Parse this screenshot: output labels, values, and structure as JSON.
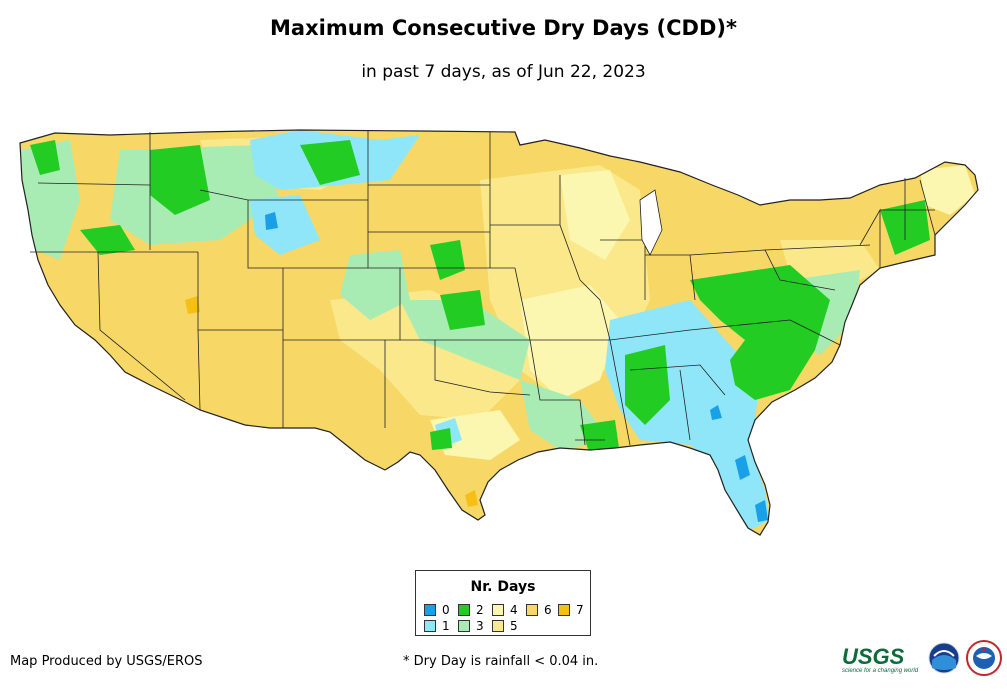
{
  "header": {
    "title": "Maximum Consecutive Dry Days (CDD)*",
    "subtitle": "in past 7 days, as of Jun 22, 2023"
  },
  "legend": {
    "title": "Nr. Days",
    "items": [
      {
        "label": "0",
        "color": "#1aa0e6"
      },
      {
        "label": "1",
        "color": "#8fe6f8"
      },
      {
        "label": "2",
        "color": "#22cc22"
      },
      {
        "label": "3",
        "color": "#a8ecb4"
      },
      {
        "label": "4",
        "color": "#fbf6b0"
      },
      {
        "label": "5",
        "color": "#fae88a"
      },
      {
        "label": "6",
        "color": "#f7d765"
      },
      {
        "label": "7",
        "color": "#f5bf16"
      }
    ]
  },
  "footer": {
    "credit": "Map Produced by USGS/EROS",
    "note": "* Dry Day is rainfall < 0.04 in."
  },
  "logos": {
    "usgs": "USGS",
    "usgs_tagline": "science for a changing world"
  },
  "map": {
    "region": "Contiguous United States",
    "dominant_category": "6",
    "colors": {
      "border": "#222222",
      "background": "#ffffff"
    }
  }
}
